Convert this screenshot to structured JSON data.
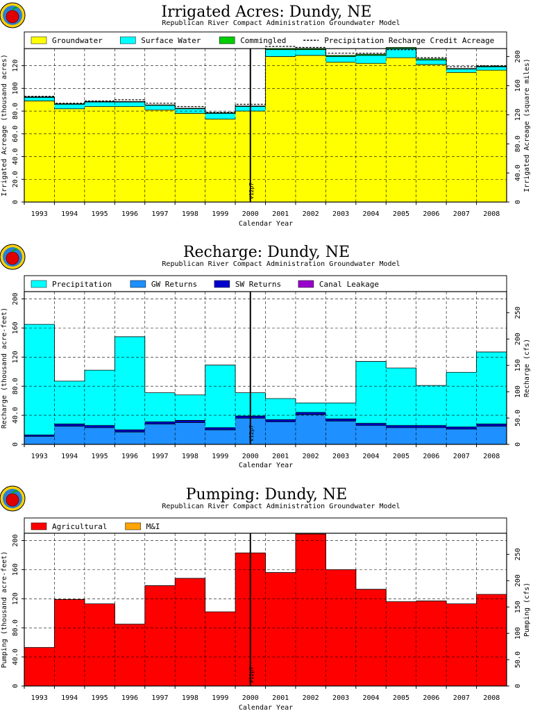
{
  "chart_data": [
    {
      "type": "area",
      "title": "Irrigated Acres: Dundy, NE",
      "subtitle": "Republican River Compact Administration Groundwater Model",
      "xlabel": "Calendar Year",
      "ylabel": "Irrigated Acreage (thousand acres)",
      "ylabel_right": "Irrigated Acreage (square miles)",
      "ylim": [
        0,
        135
      ],
      "yticks": [
        "0",
        "20.0",
        "40.0",
        "60.0",
        "80.0",
        "100",
        "120"
      ],
      "ylim_right": [
        0,
        210.9
      ],
      "yticks_right": [
        "0",
        "40.0",
        "80.0",
        "120",
        "160",
        "200"
      ],
      "categories": [
        "1993",
        "1994",
        "1995",
        "1996",
        "1997",
        "1998",
        "1999",
        "2000",
        "2001",
        "2002",
        "2003",
        "2004",
        "2005",
        "2006",
        "2007",
        "2008"
      ],
      "marker": {
        "label": "V12p7",
        "at_index": 8
      },
      "grid": true,
      "legend_position": "top",
      "series": [
        {
          "name": "Groundwater",
          "color": "#ffff00",
          "values": [
            89,
            82,
            84,
            84,
            81,
            78,
            73,
            80,
            128,
            129,
            123,
            122,
            127,
            121,
            114,
            116
          ]
        },
        {
          "name": "Surface Water",
          "color": "#00ffff",
          "values": [
            3,
            4,
            4,
            4,
            4,
            4,
            5,
            4,
            6,
            5,
            5,
            7,
            8,
            4,
            3,
            3
          ]
        },
        {
          "name": "Commingled",
          "color": "#00cc00",
          "values": [
            0.5,
            0.5,
            0.5,
            0.5,
            0.5,
            0.5,
            0.5,
            0.5,
            1,
            1,
            1,
            1,
            1,
            1,
            0.5,
            0.5
          ]
        }
      ],
      "line_series": {
        "name": "Precipitation Recharge Credit Acreage",
        "style": "dashed",
        "values": [
          93,
          87,
          89,
          90,
          87,
          84,
          79,
          86,
          137,
          136,
          131,
          131,
          134,
          127,
          119,
          120
        ]
      }
    },
    {
      "type": "area",
      "title": "Recharge: Dundy, NE",
      "subtitle": "Republican River Compact Administration Groundwater Model",
      "xlabel": "Calendar Year",
      "ylabel": "Recharge (thousand acre-feet)",
      "ylabel_right": "Recharge (cfs)",
      "ylim": [
        0,
        210
      ],
      "yticks": [
        "0",
        "40.0",
        "80.0",
        "120",
        "160",
        "200"
      ],
      "ylim_right": [
        0,
        290
      ],
      "yticks_right": [
        "0",
        "50.0",
        "100",
        "150",
        "200",
        "250"
      ],
      "categories": [
        "1993",
        "1994",
        "1995",
        "1996",
        "1997",
        "1998",
        "1999",
        "2000",
        "2001",
        "2002",
        "2003",
        "2004",
        "2005",
        "2006",
        "2007",
        "2008"
      ],
      "marker": {
        "label": "V12p7",
        "at_index": 8
      },
      "grid": true,
      "legend_position": "top",
      "series": [
        {
          "name": "GW Returns",
          "color": "#1e90ff",
          "values": [
            11,
            25,
            23,
            17,
            28,
            30,
            20,
            36,
            31,
            41,
            32,
            26,
            23,
            23,
            21,
            25
          ]
        },
        {
          "name": "SW Returns",
          "color": "#0000cc",
          "values": [
            2,
            3,
            3,
            3,
            3,
            3,
            3,
            3,
            3,
            3,
            3,
            3,
            3,
            3,
            3,
            3
          ]
        },
        {
          "name": "Precipitation",
          "color": "#00ffff",
          "values": [
            152,
            59,
            76,
            128,
            40,
            35,
            86,
            32,
            29,
            13,
            22,
            85,
            79,
            55,
            75,
            99
          ]
        },
        {
          "name": "Canal Leakage",
          "color": "#9900cc",
          "values": [
            0,
            0,
            0,
            0,
            0,
            0,
            0,
            0,
            0,
            0,
            0,
            0,
            0,
            0,
            0,
            0
          ]
        }
      ],
      "legend_order": [
        "Precipitation",
        "GW Returns",
        "SW Returns",
        "Canal Leakage"
      ]
    },
    {
      "type": "area",
      "title": "Pumping: Dundy, NE",
      "subtitle": "Republican River Compact Administration Groundwater Model",
      "xlabel": "Calendar Year",
      "ylabel": "Pumping (thousand acre-feet)",
      "ylabel_right": "Pumping (cfs)",
      "ylim": [
        0,
        210
      ],
      "yticks": [
        "0",
        "40.0",
        "80.0",
        "120",
        "160",
        "200"
      ],
      "ylim_right": [
        0,
        290
      ],
      "yticks_right": [
        "0",
        "50.0",
        "100",
        "150",
        "200",
        "250"
      ],
      "categories": [
        "1993",
        "1994",
        "1995",
        "1996",
        "1997",
        "1998",
        "1999",
        "2000",
        "2001",
        "2002",
        "2003",
        "2004",
        "2005",
        "2006",
        "2007",
        "2008"
      ],
      "marker": {
        "label": "V12p7",
        "at_index": 8
      },
      "grid": true,
      "legend_position": "top",
      "series": [
        {
          "name": "Agricultural",
          "color": "#ff0000",
          "values": [
            53,
            119,
            113,
            85,
            138,
            148,
            102,
            183,
            156,
            209,
            160,
            133,
            116,
            117,
            113,
            126
          ]
        },
        {
          "name": "M&I",
          "color": "#ffa500",
          "values": [
            0,
            0,
            0,
            0,
            0,
            0,
            0,
            0,
            0,
            0,
            0,
            0,
            0,
            0,
            0,
            0
          ]
        }
      ]
    }
  ]
}
